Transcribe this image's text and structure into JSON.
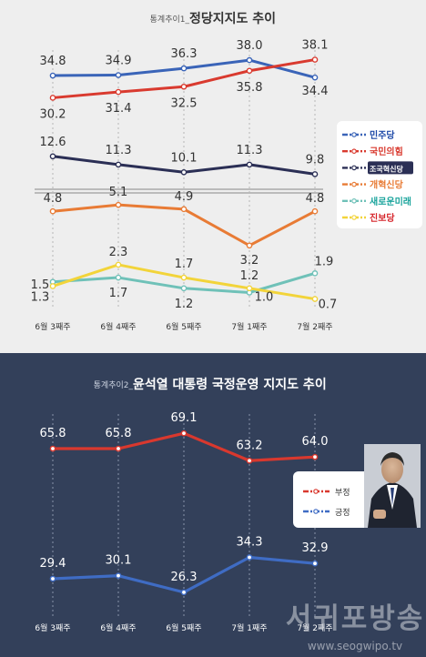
{
  "chart_data": [
    {
      "type": "line",
      "title": "통계추이1_정당지지도 추이",
      "title_prefix": "통계추이1_",
      "title_main": "정당지지도 추이",
      "categories": [
        "6월 3째주",
        "6월 4째주",
        "6월 5째주",
        "7월 1째주",
        "7월 2째주"
      ],
      "ylim": [
        0,
        40
      ],
      "series": [
        {
          "name": "민주당",
          "values": [
            34.8,
            34.9,
            36.3,
            38.0,
            34.4
          ],
          "color": "#3a64b8",
          "labels": [
            "34.8",
            "34.9",
            "36.3",
            "38.0",
            "34.4"
          ]
        },
        {
          "name": "국민의힘",
          "values": [
            30.2,
            31.4,
            32.5,
            35.8,
            38.1
          ],
          "color": "#d93a2f",
          "labels": [
            "30.2",
            "31.4",
            "32.5",
            "35.8",
            "38.1"
          ]
        },
        {
          "name": "조국혁신당",
          "values": [
            12.6,
            11.3,
            10.1,
            11.3,
            9.8
          ],
          "color": "#2b2f55",
          "labels": [
            "12.6",
            "11.3",
            "10.1",
            "11.3",
            "9.8"
          ]
        },
        {
          "name": "개혁신당",
          "values": [
            4.8,
            5.1,
            4.9,
            3.2,
            4.8
          ],
          "color": "#e87b35",
          "labels": [
            "4.8",
            "5.1",
            "4.9",
            "3.2",
            "4.8"
          ]
        },
        {
          "name": "새로운미래",
          "values": [
            1.5,
            1.7,
            1.2,
            1.0,
            1.9
          ],
          "color": "#6fc1b8",
          "labels": [
            "1.5",
            "1.7",
            "1.2",
            "1.0",
            "1.9"
          ]
        },
        {
          "name": "진보당",
          "values": [
            1.3,
            2.3,
            1.7,
            1.2,
            0.7
          ],
          "color": "#f2d43a",
          "labels": [
            "1.3",
            "2.3",
            "1.7",
            "1.2",
            "0.7"
          ]
        }
      ],
      "legend": {
        "placement": "right",
        "items": [
          {
            "label": "민주당",
            "color": "#3a64b8",
            "text_color": "#1f4aa8"
          },
          {
            "label": "국민의힘",
            "color": "#d93a2f",
            "text_color": "#d93a2f"
          },
          {
            "label": "조국혁신당",
            "color": "#2b2f55",
            "text_color": "#ffffff",
            "badge": "#2b2f55"
          },
          {
            "label": "개혁신당",
            "color": "#e87b35",
            "text_color": "#e87b35"
          },
          {
            "label": "새로운미래",
            "color": "#6fc1b8",
            "text_color": "#1aa49c"
          },
          {
            "label": "진보당",
            "color": "#f2d43a",
            "text_color": "#d6262c"
          }
        ]
      },
      "grid": false,
      "axis_break": true
    },
    {
      "type": "line",
      "title": "통계추이2_윤석열 대통령 국정운영 지지도 추이",
      "title_prefix": "통계추이2_",
      "title_main": "윤석열 대통령 국정운영 지지도 추이",
      "categories": [
        "6월 3째주",
        "6월 4째주",
        "6월 5째주",
        "7월 1째주",
        "7월 2째주"
      ],
      "ylim": [
        20,
        75
      ],
      "series": [
        {
          "name": "부정",
          "values": [
            65.8,
            65.8,
            69.1,
            63.2,
            64.0
          ],
          "color": "#d9382e",
          "labels": [
            "65.8",
            "65.8",
            "69.1",
            "63.2",
            "64.0"
          ]
        },
        {
          "name": "긍정",
          "values": [
            29.4,
            30.1,
            26.3,
            34.3,
            32.9
          ],
          "color": "#3f6cc4",
          "labels": [
            "29.4",
            "30.1",
            "26.3",
            "34.3",
            "32.9"
          ]
        }
      ],
      "legend": {
        "placement": "right",
        "items": [
          {
            "label": "부정",
            "color": "#d9382e"
          },
          {
            "label": "긍정",
            "color": "#3f6cc4"
          }
        ]
      },
      "grid": false
    }
  ],
  "watermark": {
    "name": "서귀포방송",
    "url": "www.seogwipo.tv"
  },
  "colors": {
    "top_bg": "#eeeeee",
    "bottom_bg": "#33405a"
  }
}
